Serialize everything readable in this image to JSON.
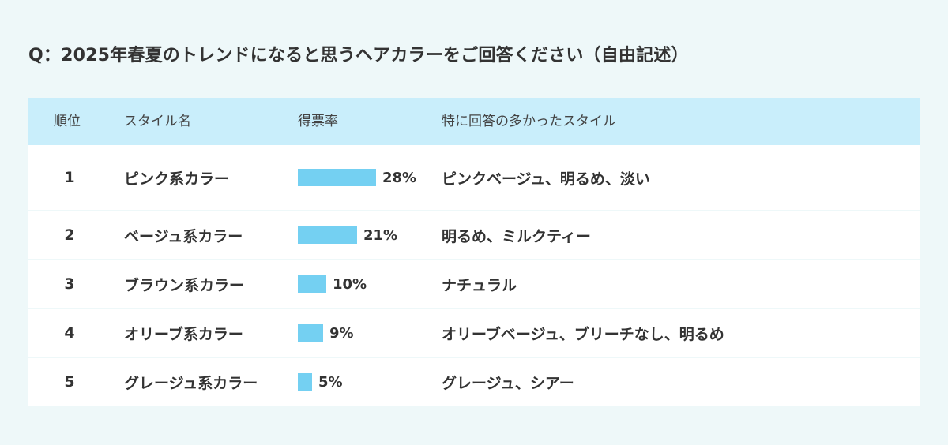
{
  "title": "Q：2025年春夏のトレンドになると思うヘアカラーをご回答ください（自由記述）",
  "headers": {
    "rank": "順位",
    "style": "スタイル名",
    "share": "得票率",
    "comment": "特に回答の多かったスタイル"
  },
  "rows": [
    {
      "rank": "1",
      "style": "ピンク系カラー",
      "percent_label": "28%",
      "comment": "ピンクベージュ、明るめ、淡い"
    },
    {
      "rank": "2",
      "style": "ベージュ系カラー",
      "percent_label": "21%",
      "comment": "明るめ、ミルクティー"
    },
    {
      "rank": "3",
      "style": "ブラウン系カラー",
      "percent_label": "10%",
      "comment": "ナチュラル"
    },
    {
      "rank": "4",
      "style": "オリーブ系カラー",
      "percent_label": "9%",
      "comment": "オリーブベージュ、ブリーチなし、明るめ"
    },
    {
      "rank": "5",
      "style": "グレージュ系カラー",
      "percent_label": "5%",
      "comment": "グレージュ、シアー"
    }
  ],
  "chart_data": {
    "type": "bar",
    "categories": [
      "ピンク系カラー",
      "ベージュ系カラー",
      "ブラウン系カラー",
      "オリーブ系カラー",
      "グレージュ系カラー"
    ],
    "values": [
      28,
      21,
      10,
      9,
      5
    ],
    "unit": "%"
  },
  "colors": {
    "bar": "#74d0f2",
    "header_bg": "#c9eefb",
    "page_bg": "#eef8f9"
  }
}
